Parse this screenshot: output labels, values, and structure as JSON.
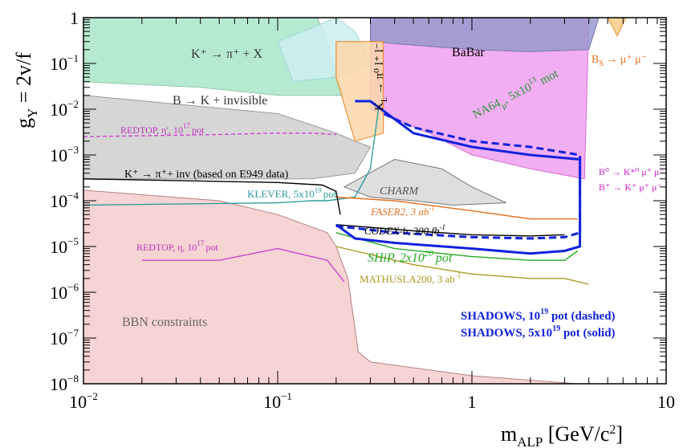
{
  "chart_data": {
    "type": "line",
    "title": "",
    "xlabel": "m_ALP [GeV/c^2]",
    "ylabel": "g_Y = 2v/f",
    "x_scale": "log",
    "y_scale": "log",
    "xlim": [
      0.01,
      10
    ],
    "ylim": [
      1e-08,
      1
    ],
    "x_ticks": [
      {
        "v": 0.01,
        "base": "10",
        "exp": "−2"
      },
      {
        "v": 0.1,
        "base": "10",
        "exp": "−1"
      },
      {
        "v": 1,
        "base": "1",
        "exp": ""
      },
      {
        "v": 10,
        "base": "10",
        "exp": ""
      }
    ],
    "y_ticks": [
      {
        "v": 1,
        "base": "1",
        "exp": ""
      },
      {
        "v": 0.1,
        "base": "10",
        "exp": "−1"
      },
      {
        "v": 0.01,
        "base": "10",
        "exp": "−2"
      },
      {
        "v": 0.001,
        "base": "10",
        "exp": "−3"
      },
      {
        "v": 0.0001,
        "base": "10",
        "exp": "−4"
      },
      {
        "v": 1e-05,
        "base": "10",
        "exp": "−5"
      },
      {
        "v": 1e-06,
        "base": "10",
        "exp": "−6"
      },
      {
        "v": 1e-07,
        "base": "10",
        "exp": "−7"
      },
      {
        "v": 1e-08,
        "base": "10",
        "exp": "−8"
      }
    ],
    "regions": [
      {
        "name": "BBN constraints",
        "color": "#f6cccc",
        "stroke": "#b58080",
        "points": [
          [
            0.01,
            0.00017
          ],
          [
            0.05,
            0.0001
          ],
          [
            0.1,
            5e-05
          ],
          [
            0.18,
            2e-05
          ],
          [
            0.2,
            1e-05
          ],
          [
            0.23,
            2e-06
          ],
          [
            0.26,
            5e-08
          ],
          [
            0.3,
            3e-08
          ],
          [
            1,
            1.5e-08
          ],
          [
            3.5,
            1e-08
          ],
          [
            0.01,
            1e-08
          ]
        ]
      },
      {
        "name": "K+ → π+ + X",
        "color": "#a8e6c8",
        "stroke": "#8cc8aa",
        "points": [
          [
            0.01,
            1
          ],
          [
            0.16,
            1
          ],
          [
            0.18,
            0.3
          ],
          [
            0.2,
            0.05
          ],
          [
            0.22,
            0.02
          ],
          [
            0.1,
            0.02
          ],
          [
            0.04,
            0.03
          ],
          [
            0.01,
            0.04
          ]
        ]
      },
      {
        "name": "B → K + invisible",
        "color": "#cfcfcf",
        "stroke": "#999999",
        "points": [
          [
            0.01,
            0.02
          ],
          [
            0.1,
            0.008
          ],
          [
            0.2,
            0.003
          ],
          [
            0.25,
            0.002
          ],
          [
            0.3,
            0.0015
          ],
          [
            0.25,
            0.0004
          ],
          [
            0.15,
            0.0003
          ],
          [
            0.05,
            0.0003
          ],
          [
            0.01,
            0.0003
          ]
        ]
      },
      {
        "name": "cyan",
        "color": "#cdeff0",
        "stroke": "#9fd6d8",
        "points": [
          [
            0.1,
            0.3
          ],
          [
            0.15,
            0.6
          ],
          [
            0.2,
            1
          ],
          [
            0.25,
            0.5
          ],
          [
            0.3,
            0.1
          ],
          [
            0.2,
            0.05
          ],
          [
            0.12,
            0.04
          ]
        ]
      },
      {
        "name": "CHARM",
        "color": "#d8d8d8",
        "stroke": "#777777",
        "points": [
          [
            0.22,
            0.0002
          ],
          [
            0.4,
            0.0008
          ],
          [
            0.7,
            0.0005
          ],
          [
            1,
            0.0002
          ],
          [
            1.5,
            9e-05
          ],
          [
            0.8,
            8e-05
          ],
          [
            0.5,
            0.0001
          ],
          [
            0.3,
            0.00012
          ]
        ]
      },
      {
        "name": "NA64mu pink",
        "color": "#f0a0f0",
        "stroke": "#d070d0",
        "points": [
          [
            0.3,
            1
          ],
          [
            4,
            1
          ],
          [
            3.8,
            0.0003
          ],
          [
            2,
            0.0005
          ],
          [
            1,
            0.001
          ],
          [
            0.6,
            0.003
          ],
          [
            0.4,
            0.006
          ],
          [
            0.3,
            0.01
          ]
        ]
      },
      {
        "name": "BaBar",
        "color": "#9999cc",
        "stroke": "#7777aa",
        "points": [
          [
            0.3,
            1
          ],
          [
            4.5,
            1
          ],
          [
            4,
            0.2
          ],
          [
            2,
            0.18
          ],
          [
            1,
            0.2
          ],
          [
            0.5,
            0.25
          ],
          [
            0.3,
            0.3
          ]
        ]
      },
      {
        "name": "Bs → μ+μ−",
        "color": "#f8cc88",
        "stroke": "#e89030",
        "points": [
          [
            5.0,
            1
          ],
          [
            6.2,
            1
          ],
          [
            5.6,
            0.4
          ]
        ]
      },
      {
        "name": "orange small",
        "color": "#fbd7aa",
        "stroke": "#e88020",
        "points": [
          [
            0.2,
            0.3
          ],
          [
            0.35,
            0.3
          ],
          [
            0.35,
            0.003
          ],
          [
            0.25,
            0.002
          ],
          [
            0.2,
            0.05
          ]
        ]
      }
    ],
    "curves": [
      {
        "name": "KLEVER, 5x10^19 pot",
        "color": "#2f9e9e",
        "dash": false,
        "points": [
          [
            0.01,
            8e-05
          ],
          [
            0.1,
            9e-05
          ],
          [
            0.15,
            0.0001
          ],
          [
            0.18,
            0.0001
          ],
          [
            0.25,
            0.00012
          ],
          [
            0.3,
            0.0005
          ],
          [
            0.33,
            0.01
          ]
        ]
      },
      {
        "name": "REDTOP, η′, 10^17 pot",
        "color": "#cc44cc",
        "dash": true,
        "points": [
          [
            0.01,
            0.0025
          ],
          [
            0.05,
            0.0028
          ],
          [
            0.1,
            0.003
          ],
          [
            0.15,
            0.003
          ],
          [
            0.2,
            0.0028
          ]
        ]
      },
      {
        "name": "REDTOP, η, 10^17 pot",
        "color": "#cc44cc",
        "dash": false,
        "points": [
          [
            0.02,
            5e-06
          ],
          [
            0.05,
            5e-06
          ],
          [
            0.1,
            9e-06
          ],
          [
            0.18,
            5e-06
          ],
          [
            0.22,
            1.7e-06
          ]
        ]
      },
      {
        "name": "FASER2, 3 ab^-1",
        "color": "#e87020",
        "dash": false,
        "points": [
          [
            0.2,
            0.00012
          ],
          [
            0.4,
            0.0001
          ],
          [
            1,
            6e-05
          ],
          [
            2,
            4e-05
          ],
          [
            3,
            4e-05
          ],
          [
            3.5,
            4e-05
          ]
        ]
      },
      {
        "name": "CODEX-b, 300 fb^-1",
        "color": "#000000",
        "dash": false,
        "points": [
          [
            0.2,
            3e-05
          ],
          [
            0.5,
            2.2e-05
          ],
          [
            1,
            1.8e-05
          ],
          [
            2,
            1.7e-05
          ],
          [
            3,
            1.8e-05
          ]
        ]
      },
      {
        "name": "SHiP, 2x10^20 pot",
        "color": "#22aa22",
        "dash": false,
        "points": [
          [
            0.2,
            2e-05
          ],
          [
            0.4,
            9e-06
          ],
          [
            1,
            6e-06
          ],
          [
            2,
            5e-06
          ],
          [
            3,
            5e-06
          ],
          [
            3.5,
            8e-06
          ]
        ]
      },
      {
        "name": "MATHUSLA200, 3 ab^-1",
        "color": "#aa9922",
        "dash": false,
        "points": [
          [
            0.2,
            1e-05
          ],
          [
            0.5,
            4e-06
          ],
          [
            1,
            2.5e-06
          ],
          [
            2,
            2e-06
          ],
          [
            3,
            2e-06
          ],
          [
            4,
            1.5e-06
          ]
        ]
      },
      {
        "name": "K+ → π+ + inv (based on E949 data)",
        "color": "#000000",
        "dash": false,
        "points": [
          [
            0.01,
            0.0003
          ],
          [
            0.1,
            0.00025
          ],
          [
            0.17,
            0.00022
          ],
          [
            0.2,
            0.00016
          ],
          [
            0.21,
            5e-05
          ]
        ]
      },
      {
        "name": "SHADOWS, 10^19 pot (dashed)",
        "color": "#1122dd",
        "dash": true,
        "points": [
          [
            0.2,
            2.8e-05
          ],
          [
            0.4,
            2e-05
          ],
          [
            1,
            1.6e-05
          ],
          [
            2,
            1.5e-05
          ],
          [
            3,
            1.6e-05
          ],
          [
            3.6,
            2e-05
          ],
          [
            3.6,
            0.001
          ],
          [
            2,
            0.0015
          ],
          [
            1,
            0.002
          ],
          [
            0.5,
            0.004
          ],
          [
            0.35,
            0.008
          ]
        ]
      },
      {
        "name": "SHADOWS, 5x10^19 pot (solid)",
        "color": "#1122dd",
        "dash": false,
        "points": [
          [
            0.2,
            3e-05
          ],
          [
            0.25,
            1.5e-05
          ],
          [
            0.4,
            1.2e-05
          ],
          [
            1,
            9e-06
          ],
          [
            2,
            7e-06
          ],
          [
            3,
            8e-06
          ],
          [
            3.6,
            1e-05
          ],
          [
            3.6,
            0.0008
          ],
          [
            2,
            0.001
          ],
          [
            1,
            0.0015
          ],
          [
            0.5,
            0.003
          ],
          [
            0.3,
            0.015
          ],
          [
            0.25,
            0.015
          ]
        ]
      }
    ]
  },
  "labels": {
    "babar": "BaBar",
    "kpi_x": "K⁺ → π⁺ + X",
    "bk_inv": "B → K + invisible",
    "redtop_etaprime": "REDTOP, η′, 10",
    "redtop_etaprime_exp": "17",
    "redtop_etaprime_pot": "pot",
    "kpi_inv": "K⁺ → π⁺+ inv (based on E949 data)",
    "klever": "KLEVER, 5x10",
    "klever_exp": "19",
    "klever_pot": "pot",
    "charm": "CHARM",
    "faser2": "FASER2, 3 ab",
    "faser2_exp": "-1",
    "codexb": "CODEX-b, 300 fb",
    "codexb_exp": "-1",
    "ship": "SHiP, 2x10",
    "ship_exp": "20",
    "ship_pot": "pot",
    "mathusla": "MATHUSLA200, 3 ab",
    "mathusla_exp": "-1",
    "redtop_eta": "REDTOP, η, 10",
    "redtop_eta_exp": "17",
    "redtop_eta_pot": "pot",
    "bbn": "BBN constraints",
    "na64": "NA64",
    "na64_sub": "μ",
    "na64_rest": ", 5x10",
    "na64_exp": "13",
    "na64_mot": "mot",
    "kl": "K",
    "kl_sub": "L",
    "kl_rest": " → π⁰ l⁺ l⁻",
    "bs": "B",
    "bs_sub": "S",
    "bs_rest": " → μ⁺ μ⁻",
    "b0_line": "B⁰ → K*⁰ μ⁺ μ⁻",
    "bp_line": "B⁺ → K⁺ μ⁺ μ⁻",
    "shadows_dashed": "SHADOWS, 10",
    "shadows_dashed_exp": "19",
    "shadows_dashed_rest": " pot (dashed)",
    "shadows_solid": "SHADOWS, 5x10",
    "shadows_solid_exp": "19",
    "shadows_solid_rest": " pot (solid)",
    "y_title_main": "g",
    "y_title_sub": "Y",
    "y_title_rest": " = 2v/f",
    "x_title_main": "m",
    "x_title_sub": "ALP",
    "x_title_rest": " [GeV/c",
    "x_title_exp": "2",
    "x_title_end": "]"
  }
}
